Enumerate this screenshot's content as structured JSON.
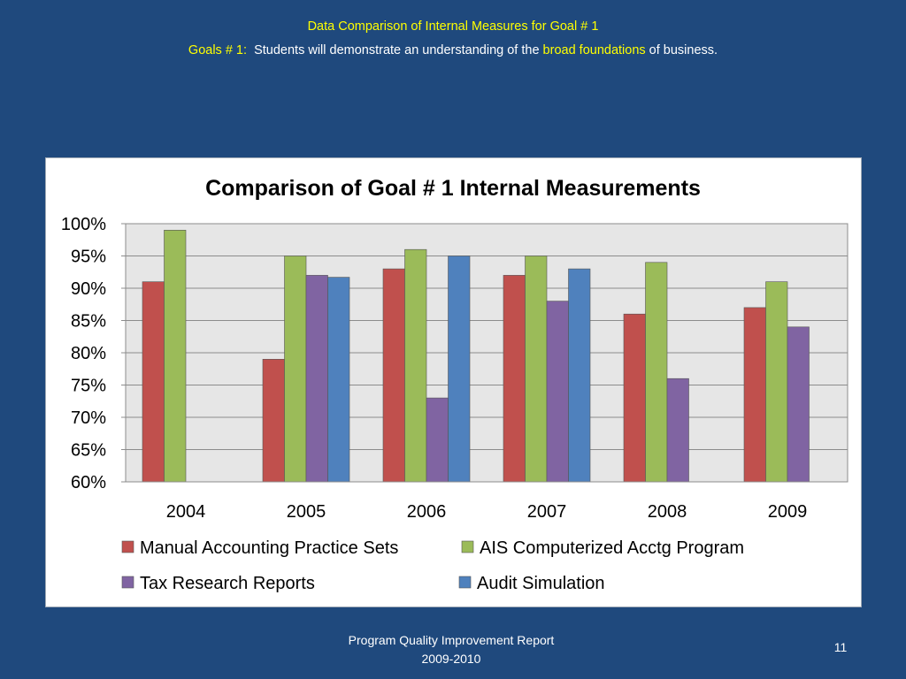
{
  "slide": {
    "title": "Data Comparison of Internal Measures for Goal # 1",
    "subtitle_label": "Goals # 1:",
    "subtitle_pre": "Students will demonstrate an understanding of the",
    "subtitle_highlight": "broad foundations",
    "subtitle_post": "of business.",
    "footer_line1": "Program Quality Improvement Report",
    "footer_line2": "2009-2010",
    "page_number": "11"
  },
  "colors": {
    "background": "#1F497D",
    "accent_text": "#FFFF00",
    "plot_area": "#E6E6E6"
  },
  "chart_data": {
    "type": "bar",
    "title": "Comparison of Goal # 1 Internal Measurements",
    "xlabel": "",
    "ylabel": "",
    "categories": [
      "2004",
      "2005",
      "2006",
      "2007",
      "2008",
      "2009"
    ],
    "ylim": [
      60,
      100
    ],
    "yticks": [
      60,
      65,
      70,
      75,
      80,
      85,
      90,
      95,
      100
    ],
    "ytick_labels": [
      "60%",
      "65%",
      "70%",
      "75%",
      "80%",
      "85%",
      "90%",
      "95%",
      "100%"
    ],
    "grid": true,
    "legend_position": "bottom",
    "series": [
      {
        "name": "Manual Accounting Practice Sets",
        "color": "#C0504D",
        "values": [
          91,
          79,
          93,
          92,
          86,
          87
        ]
      },
      {
        "name": "AIS Computerized Acctg Program",
        "color": "#9BBB59",
        "values": [
          99,
          95,
          96,
          95,
          94,
          91
        ]
      },
      {
        "name": "Tax Research Reports",
        "color": "#8064A2",
        "values": [
          null,
          92,
          73,
          88,
          76,
          84
        ]
      },
      {
        "name": "Audit Simulation",
        "color": "#4F81BD",
        "values": [
          null,
          91.7,
          95,
          93,
          null,
          null
        ]
      }
    ]
  }
}
